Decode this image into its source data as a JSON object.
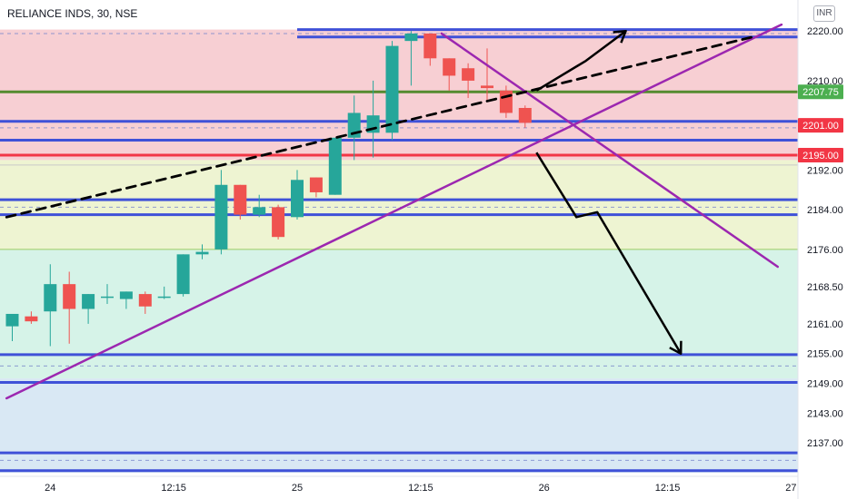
{
  "chart_title": "RELIANCE INDS, 30, NSE",
  "currency_label": "INR",
  "colors": {
    "up": "#26a69a",
    "down": "#ef5350",
    "axis_text": "#131722",
    "label_green": "#4caf50",
    "label_red": "#f23645",
    "trendline_purple": "#9c27b0",
    "horizontal_blue": "#3f51d8",
    "dashed_line": "#000000",
    "arrow": "#000000"
  },
  "chart_data": {
    "type": "candlestick",
    "ylim": [
      2131,
      2221.5
    ],
    "y_ticks": [
      "2220.00",
      "2210.00",
      "2192.00",
      "2184.00",
      "2176.00",
      "2168.50",
      "2161.00",
      "2155.00",
      "2149.00",
      "2143.00",
      "2137.00"
    ],
    "x_ticks": [
      {
        "label": "24",
        "slot": 2
      },
      {
        "label": "12:15",
        "slot": 8.5
      },
      {
        "label": "25",
        "slot": 15
      },
      {
        "label": "12:15",
        "slot": 21.5
      },
      {
        "label": "26",
        "slot": 28
      },
      {
        "label": "12:15",
        "slot": 34.5
      },
      {
        "label": "27",
        "slot": 41
      }
    ],
    "candles": [
      {
        "o": 2160.5,
        "h": 2163.0,
        "l": 2157.5,
        "c": 2163.0
      },
      {
        "o": 2162.5,
        "h": 2163.5,
        "l": 2161.0,
        "c": 2161.5
      },
      {
        "o": 2163.5,
        "h": 2173.0,
        "l": 2156.5,
        "c": 2169.0
      },
      {
        "o": 2169.0,
        "h": 2171.5,
        "l": 2157.0,
        "c": 2164.0
      },
      {
        "o": 2164.0,
        "h": 2167.0,
        "l": 2161.0,
        "c": 2167.0
      },
      {
        "o": 2166.5,
        "h": 2169.0,
        "l": 2165.0,
        "c": 2166.5
      },
      {
        "o": 2166.0,
        "h": 2167.5,
        "l": 2164.0,
        "c": 2167.5
      },
      {
        "o": 2167.0,
        "h": 2167.5,
        "l": 2163.0,
        "c": 2164.5
      },
      {
        "o": 2166.5,
        "h": 2168.5,
        "l": 2166.0,
        "c": 2166.5
      },
      {
        "o": 2167.0,
        "h": 2175.0,
        "l": 2166.5,
        "c": 2175.0
      },
      {
        "o": 2175.0,
        "h": 2177.0,
        "l": 2174.0,
        "c": 2175.5
      },
      {
        "o": 2176.0,
        "h": 2192.0,
        "l": 2175.0,
        "c": 2189.0
      },
      {
        "o": 2189.0,
        "h": 2189.0,
        "l": 2182.0,
        "c": 2183.0
      },
      {
        "o": 2183.0,
        "h": 2187.0,
        "l": 2182.5,
        "c": 2184.5
      },
      {
        "o": 2184.5,
        "h": 2185.0,
        "l": 2178.0,
        "c": 2178.5
      },
      {
        "o": 2182.5,
        "h": 2192.0,
        "l": 2182.0,
        "c": 2190.0
      },
      {
        "o": 2190.5,
        "h": 2190.5,
        "l": 2186.5,
        "c": 2187.5
      },
      {
        "o": 2187.0,
        "h": 2198.5,
        "l": 2187.0,
        "c": 2198.5
      },
      {
        "o": 2198.5,
        "h": 2207.0,
        "l": 2194.0,
        "c": 2203.5
      },
      {
        "o": 2199.5,
        "h": 2210.0,
        "l": 2194.5,
        "c": 2203.0
      },
      {
        "o": 2199.5,
        "h": 2218.0,
        "l": 2198.0,
        "c": 2217.0
      },
      {
        "o": 2218.0,
        "h": 2220.0,
        "l": 2209.0,
        "c": 2219.5
      },
      {
        "o": 2219.5,
        "h": 2219.5,
        "l": 2213.0,
        "c": 2214.5
      },
      {
        "o": 2214.5,
        "h": 2214.5,
        "l": 2208.0,
        "c": 2211.0
      },
      {
        "o": 2212.5,
        "h": 2213.5,
        "l": 2206.5,
        "c": 2210.0
      },
      {
        "o": 2209.0,
        "h": 2216.5,
        "l": 2206.0,
        "c": 2208.5
      },
      {
        "o": 2208.0,
        "h": 2209.0,
        "l": 2202.5,
        "c": 2203.5
      },
      {
        "o": 2204.5,
        "h": 2205.0,
        "l": 2200.5,
        "c": 2201.5
      }
    ],
    "price_labels": [
      {
        "text": "2207.75",
        "value": 2207.75,
        "color": "#4caf50"
      },
      {
        "text": "2201.00",
        "value": 2201.0,
        "color": "#f23645"
      },
      {
        "text": "2195.00",
        "value": 2195.0,
        "color": "#f23645"
      }
    ],
    "zones": [
      {
        "from": 2220.3,
        "to": 2194.0,
        "color": "#f7cfd3"
      },
      {
        "from": 2194.0,
        "to": 2176.0,
        "color": "#eef4d2"
      },
      {
        "from": 2176.0,
        "to": 2150.0,
        "color": "#d6f3e8"
      },
      {
        "from": 2150.0,
        "to": 2131.0,
        "color": "#d9e8f4"
      }
    ],
    "horizontal_lines": [
      {
        "value": 2220.3,
        "color": "#3f51d8",
        "from_slot": 15
      },
      {
        "value": 2218.8,
        "color": "#3f51d8",
        "from_slot": 15
      },
      {
        "value": 2207.75,
        "color": "#558b2f"
      },
      {
        "value": 2201.8,
        "color": "#3f51d8"
      },
      {
        "value": 2198.0,
        "color": "#3f51d8"
      },
      {
        "value": 2195.0,
        "color": "#f23645"
      },
      {
        "value": 2186.0,
        "color": "#3f51d8"
      },
      {
        "value": 2183.0,
        "color": "#3f51d8"
      },
      {
        "value": 2154.8,
        "color": "#3f51d8"
      },
      {
        "value": 2149.2,
        "color": "#3f51d8"
      },
      {
        "value": 2135.0,
        "color": "#3f51d8"
      },
      {
        "value": 2131.4,
        "color": "#3f51d8"
      }
    ],
    "thin_lines": [
      {
        "value": 2193.0,
        "color": "#c9c9c9"
      },
      {
        "value": 2176.0,
        "color": "#9ccc65"
      }
    ],
    "dashed_guides": [
      2219.5,
      2200.5,
      2184.5,
      2152.5,
      2133.5
    ],
    "trendlines": [
      {
        "x1": -0.3,
        "y1": 2146.0,
        "x2": 40.5,
        "y2": 2221.3,
        "color": "#9c27b0",
        "width": 2.5
      },
      {
        "x1": 22.6,
        "y1": 2219.5,
        "x2": 40.3,
        "y2": 2172.5,
        "color": "#9c27b0",
        "width": 2.5
      },
      {
        "x1": -0.3,
        "y1": 2182.5,
        "x2": 39.2,
        "y2": 2219.0,
        "color": "#000000",
        "width": 2.8,
        "dash": "10,7"
      }
    ],
    "arrows": [
      {
        "points": [
          [
            27.6,
            2208.0
          ],
          [
            30.2,
            2214.0
          ],
          [
            32.3,
            2220.0
          ]
        ]
      },
      {
        "points": [
          [
            27.6,
            2195.5
          ],
          [
            29.7,
            2182.5
          ],
          [
            30.8,
            2183.5
          ],
          [
            35.2,
            2155.0
          ]
        ]
      }
    ]
  }
}
